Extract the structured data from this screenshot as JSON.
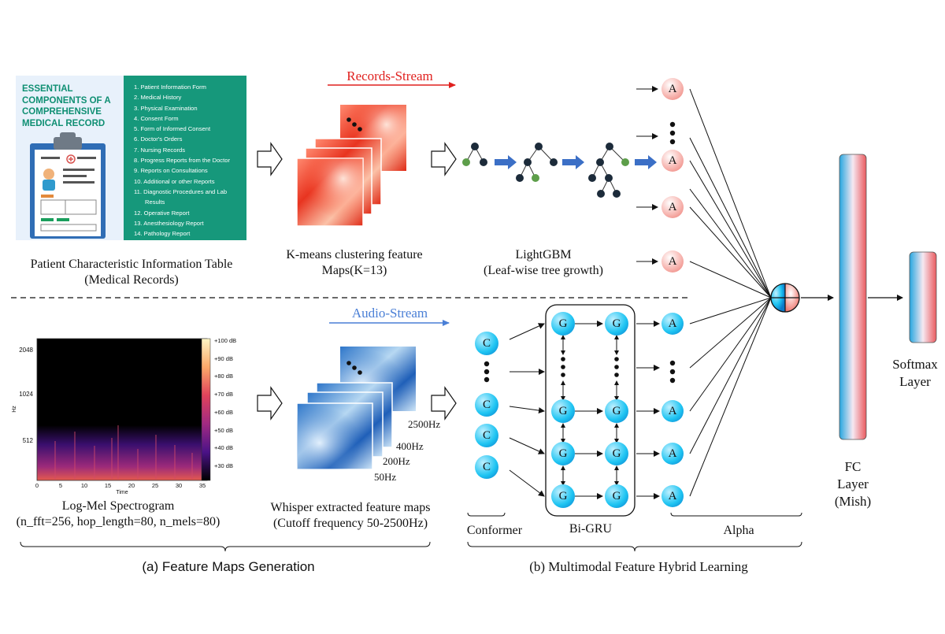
{
  "colors": {
    "records_stream": "#e0201e",
    "audio_stream": "#4a7fd6",
    "card_green": "#16987b",
    "node_red": "#f7b7b2",
    "node_blue": "#1ec4f2"
  },
  "records_card": {
    "title_lines": [
      "ESSENTIAL",
      "COMPONENTS OF A",
      "COMPREHENSIVE",
      "MEDICAL RECORD"
    ],
    "items": [
      "1. Patient Information Form",
      "2. Medical History",
      "3. Physical Examination",
      "4. Consent Form",
      "5. Form of Informed Consent",
      "6. Doctor's Orders",
      "7. Nursing Records",
      "8. Progress Reports from the Doctor",
      "9. Reports on Consultations",
      "10. Additional or other Reports",
      "11. Diagnostic Procedures and Lab",
      "Results",
      "12. Operative Report",
      "13. Anesthesiology Report",
      "14. Pathology Report"
    ]
  },
  "labels": {
    "records_stream": "Records-Stream",
    "audio_stream": "Audio-Stream",
    "patient_table_1": "Patient Characteristic Information Table",
    "patient_table_2": "(Medical Records)",
    "kmeans_1": "K-means clustering feature",
    "kmeans_2": "Maps(K=13)",
    "lightgbm_1": "LightGBM",
    "lightgbm_2": "(Leaf-wise tree growth)",
    "logmel_1": "Log-Mel Spectrogram",
    "logmel_2": "(n_fft=256, hop_length=80, n_mels=80)",
    "whisper_1": "Whisper extracted feature maps",
    "whisper_2": "(Cutoff frequency 50-2500Hz)",
    "conformer": "Conformer",
    "bigru": "Bi-GRU",
    "alpha": "Alpha",
    "fc_1": "FC",
    "fc_2": "Layer",
    "fc_3": "(Mish)",
    "softmax_1": "Softmax",
    "softmax_2": "Layer",
    "section_a": "(a) Feature Maps Generation",
    "section_b": "(b) Multimodal Feature Hybrid Learning"
  },
  "freq_labels": [
    "2500Hz",
    "400Hz",
    "200Hz",
    "50Hz"
  ],
  "node_letters": {
    "alpha": "A",
    "conformer": "C",
    "gru": "G"
  },
  "spectrogram": {
    "y_ticks": [
      "2048",
      "1024",
      "512"
    ],
    "y_label": "Hz",
    "x_ticks": [
      "0",
      "5",
      "10",
      "15",
      "20",
      "25",
      "30",
      "35"
    ],
    "x_label": "Time",
    "colorbar_ticks": [
      "+100 dB",
      "+90 dB",
      "+80 dB",
      "+70 dB",
      "+60 dB",
      "+50 dB",
      "+40 dB",
      "+30 dB"
    ]
  }
}
